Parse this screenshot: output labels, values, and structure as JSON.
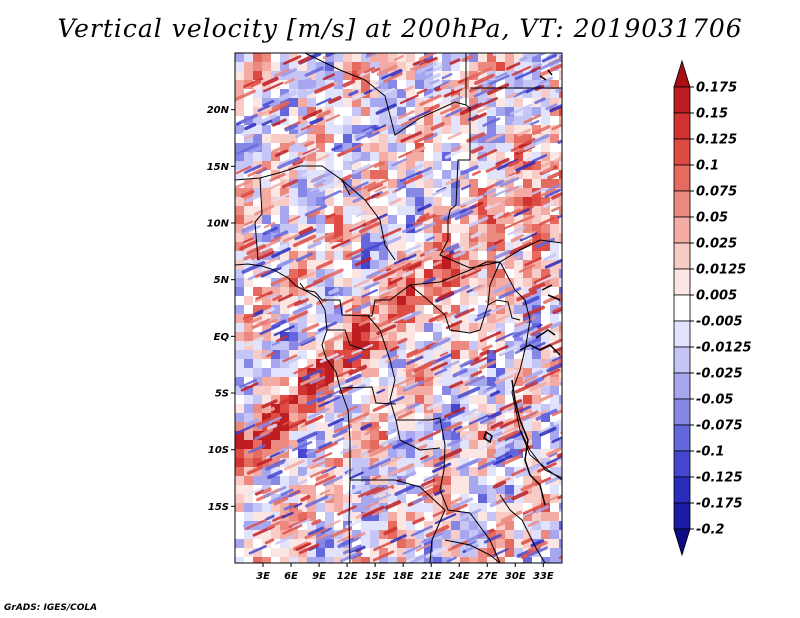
{
  "title": "Vertical velocity [m/s] at 200hPa, VT: 2019031706",
  "credit": "GrADS: IGES/COLA",
  "map": {
    "lon_range": [
      0,
      35
    ],
    "lat_range": [
      -20,
      25
    ],
    "lat_ticks": [
      {
        "lat": 20,
        "label": "20N"
      },
      {
        "lat": 15,
        "label": "15N"
      },
      {
        "lat": 10,
        "label": "10N"
      },
      {
        "lat": 5,
        "label": "5N"
      },
      {
        "lat": 0,
        "label": "EQ"
      },
      {
        "lat": -5,
        "label": "5S"
      },
      {
        "lat": -10,
        "label": "10S"
      },
      {
        "lat": -15,
        "label": "15S"
      }
    ],
    "lon_ticks": [
      {
        "lon": 3,
        "label": "3E"
      },
      {
        "lon": 6,
        "label": "6E"
      },
      {
        "lon": 9,
        "label": "9E"
      },
      {
        "lon": 12,
        "label": "12E"
      },
      {
        "lon": 15,
        "label": "15E"
      },
      {
        "lon": 18,
        "label": "18E"
      },
      {
        "lon": 21,
        "label": "21E"
      },
      {
        "lon": 24,
        "label": "24E"
      },
      {
        "lon": 27,
        "label": "27E"
      },
      {
        "lon": 30,
        "label": "30E"
      },
      {
        "lon": 33,
        "label": "33E"
      }
    ]
  },
  "colorbar": {
    "labels": [
      "0.175",
      "0.15",
      "0.125",
      "0.1",
      "0.075",
      "0.05",
      "0.025",
      "0.0125",
      "0.005",
      "-0.005",
      "-0.0125",
      "-0.025",
      "-0.05",
      "-0.075",
      "-0.1",
      "-0.125",
      "-0.175",
      "-0.2"
    ],
    "colors": [
      "#a50f15",
      "#be1e22",
      "#d03330",
      "#dd4b43",
      "#e56a5f",
      "#ec8a80",
      "#f3aba3",
      "#f8cbc6",
      "#fce6e3",
      "#ffffff",
      "#e1e2fb",
      "#c5c6f5",
      "#a6a7ee",
      "#8788e6",
      "#6466dc",
      "#4446cf",
      "#2a2cbc",
      "#1a1ba3",
      "#0c0b86"
    ]
  }
}
